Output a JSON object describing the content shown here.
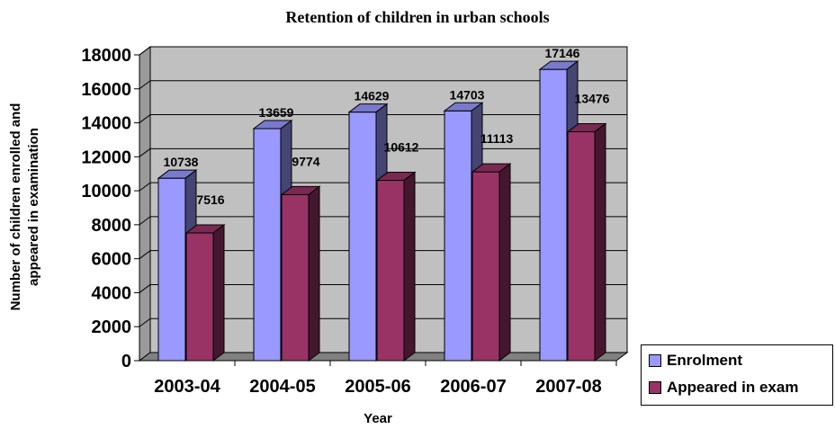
{
  "chart_data": {
    "type": "bar",
    "title": "Retention of children in urban schools",
    "xlabel": "Year",
    "ylabel": "Number of children enrolled and appeared in examination",
    "categories": [
      "2003-04",
      "2004-05",
      "2005-06",
      "2006-07",
      "2007-08"
    ],
    "series": [
      {
        "name": "Enrolment",
        "values": [
          10738,
          13659,
          14629,
          14703,
          17146
        ],
        "color": "#9999ff"
      },
      {
        "name": "Appeared in exam",
        "values": [
          7516,
          9774,
          10612,
          11113,
          13476
        ],
        "color": "#993366"
      }
    ],
    "ylim": [
      0,
      18000
    ],
    "yticks": [
      "0",
      "2000",
      "4000",
      "6000",
      "8000",
      "10000",
      "12000",
      "14000",
      "16000",
      "18000"
    ],
    "grid": true,
    "legend_position": "bottom-right",
    "plot_background": "#c0c0c0"
  }
}
